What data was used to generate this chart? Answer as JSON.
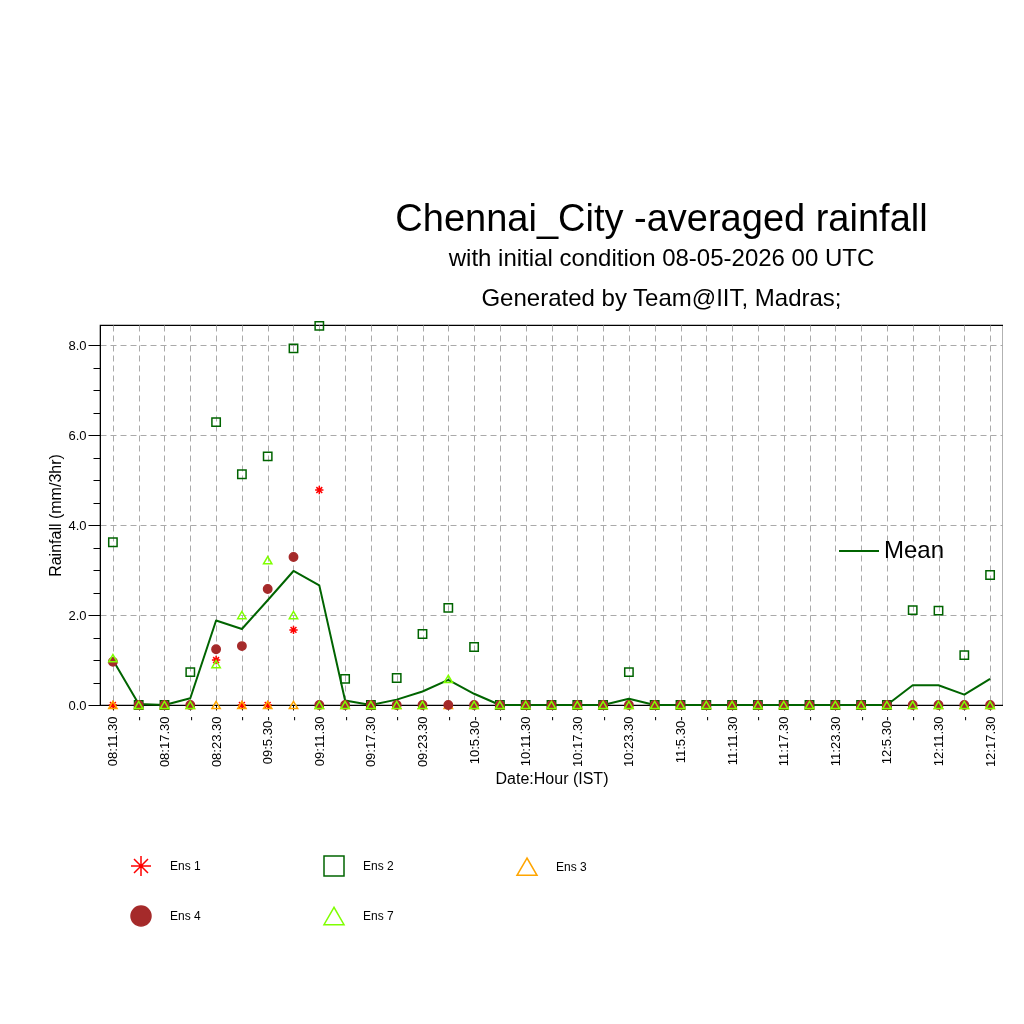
{
  "chart_data": {
    "type": "scatter",
    "title": "Chennai_City -averaged rainfall",
    "subtitle": "with initial condition 08-05-2026 00 UTC",
    "annotations": [
      "Generated by Team@IIT, Madras;"
    ],
    "xlabel": "Date:Hour (IST)",
    "ylabel": "Rainfall (mm/3hr)",
    "categories": [
      "08:11.30",
      "-",
      "08:17.30",
      "-",
      "08:23.30",
      "-",
      "09:5.30-",
      "-",
      "09:11.30",
      "-",
      "09:17.30",
      "-",
      "09:23.30",
      "-",
      "10:5.30-",
      "-",
      "10:11.30",
      "-",
      "10:17.30",
      "-",
      "10:23.30",
      "-",
      "11:5.30-",
      "-",
      "11:11.30",
      "-",
      "11:17.30",
      "-",
      "11:23.30",
      "-",
      "12:5.30-",
      "-",
      "12:11.30",
      "-",
      "12:17.30"
    ],
    "series": [
      {
        "name": "Mean",
        "type": "line",
        "color": "#006400",
        "marker": "none",
        "values": [
          1.0,
          0.02,
          0,
          0.15,
          1.88,
          1.69,
          2.33,
          2.98,
          2.66,
          0.1,
          0,
          0.12,
          0.3,
          0.56,
          0.25,
          0,
          0,
          0,
          0,
          0,
          0.14,
          0,
          0,
          0,
          0,
          0,
          0,
          0,
          0,
          0,
          0,
          0.44,
          0.44,
          0.23,
          0.58
        ]
      },
      {
        "name": "Ens 1",
        "type": "scatter",
        "color": "#ff0000",
        "marker": "cross",
        "values": [
          0,
          null,
          0,
          null,
          1.0,
          0,
          0,
          1.67,
          4.78,
          null,
          null,
          null,
          0,
          null,
          null,
          null,
          null,
          0,
          null,
          null,
          null,
          null,
          0,
          null,
          null,
          null,
          null,
          0,
          null,
          null,
          null,
          null,
          0,
          null,
          null
        ]
      },
      {
        "name": "Ens 2",
        "type": "scatter",
        "color": "#006400",
        "marker": "square",
        "values": [
          3.62,
          0,
          0,
          0.73,
          6.29,
          5.13,
          5.53,
          7.93,
          8.43,
          0.58,
          0,
          0.6,
          1.58,
          2.16,
          1.29,
          0,
          0,
          0,
          0,
          0,
          0.73,
          0,
          0,
          0,
          0,
          0,
          0,
          0,
          0,
          0,
          0,
          2.11,
          2.1,
          1.11,
          2.89
        ]
      },
      {
        "name": "Ens 3",
        "type": "scatter",
        "color": "#ffa500",
        "marker": "triangle",
        "values": [
          0,
          0,
          0,
          0,
          0,
          0,
          0,
          0,
          0,
          0,
          0,
          0,
          0,
          0,
          0,
          0,
          0,
          0,
          0,
          0,
          0,
          0,
          0,
          0,
          0,
          0,
          0,
          0,
          0,
          0,
          0,
          0,
          0,
          0,
          0
        ]
      },
      {
        "name": "Ens 4",
        "type": "scatter",
        "color": "#a52a2a",
        "marker": "circle",
        "values": [
          0.96,
          0,
          0,
          0,
          1.24,
          1.31,
          2.58,
          3.29,
          0,
          0,
          0,
          0,
          0,
          0,
          0,
          0,
          0,
          0,
          0,
          0,
          0,
          0,
          0,
          0,
          0,
          0,
          0,
          0,
          0,
          0,
          0,
          0,
          0,
          0,
          0
        ]
      },
      {
        "name": "Ens 7",
        "type": "scatter",
        "color": "#7fff00",
        "marker": "triangle",
        "values": [
          1.04,
          0,
          0,
          0,
          0.91,
          2.0,
          3.22,
          2.0,
          0,
          0,
          0,
          0,
          0,
          0.58,
          0,
          0,
          0,
          0,
          0,
          0,
          0,
          0,
          0,
          0,
          0,
          0,
          0,
          0,
          0,
          0,
          0,
          0,
          0,
          0,
          0
        ]
      }
    ],
    "ylim": [
      0,
      8.45
    ],
    "yticks": [
      {
        "value": 0,
        "label": "0.0"
      },
      {
        "value": 0.5,
        "label": null
      },
      {
        "value": 1,
        "label": null
      },
      {
        "value": 1.5,
        "label": null
      },
      {
        "value": 2,
        "label": "2.0"
      },
      {
        "value": 2.5,
        "label": null
      },
      {
        "value": 3,
        "label": null
      },
      {
        "value": 3.5,
        "label": null
      },
      {
        "value": 4,
        "label": "4.0"
      },
      {
        "value": 4.5,
        "label": null
      },
      {
        "value": 5,
        "label": null
      },
      {
        "value": 5.5,
        "label": null
      },
      {
        "value": 6,
        "label": "6.0"
      },
      {
        "value": 6.5,
        "label": null
      },
      {
        "value": 7,
        "label": null
      },
      {
        "value": 7.5,
        "label": null
      },
      {
        "value": 8,
        "label": "8.0"
      }
    ],
    "grid": true,
    "legend": "bottom"
  }
}
